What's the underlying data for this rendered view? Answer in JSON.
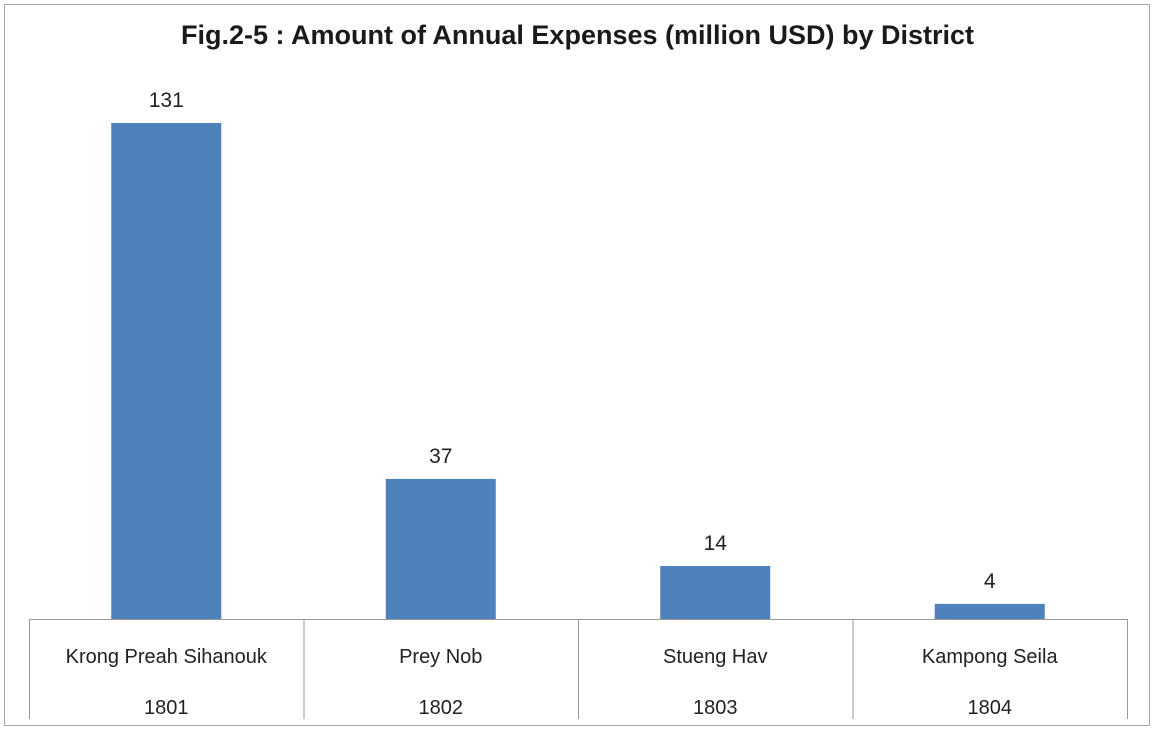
{
  "chart_data": {
    "type": "bar",
    "title": "Fig.2-5 : Amount of Annual Expenses (million USD) by District",
    "categories": [
      "Krong Preah Sihanouk",
      "Prey Nob",
      "Stueng Hav",
      "Kampong Seila"
    ],
    "category_codes": [
      "1801",
      "1802",
      "1803",
      "1804"
    ],
    "values": [
      131,
      37,
      14,
      4
    ],
    "data_labels": [
      "131",
      "37",
      "14",
      "4"
    ],
    "ylim": [
      0,
      131
    ],
    "grid": false,
    "legend": "none",
    "bar_color": "#4f81bd"
  }
}
